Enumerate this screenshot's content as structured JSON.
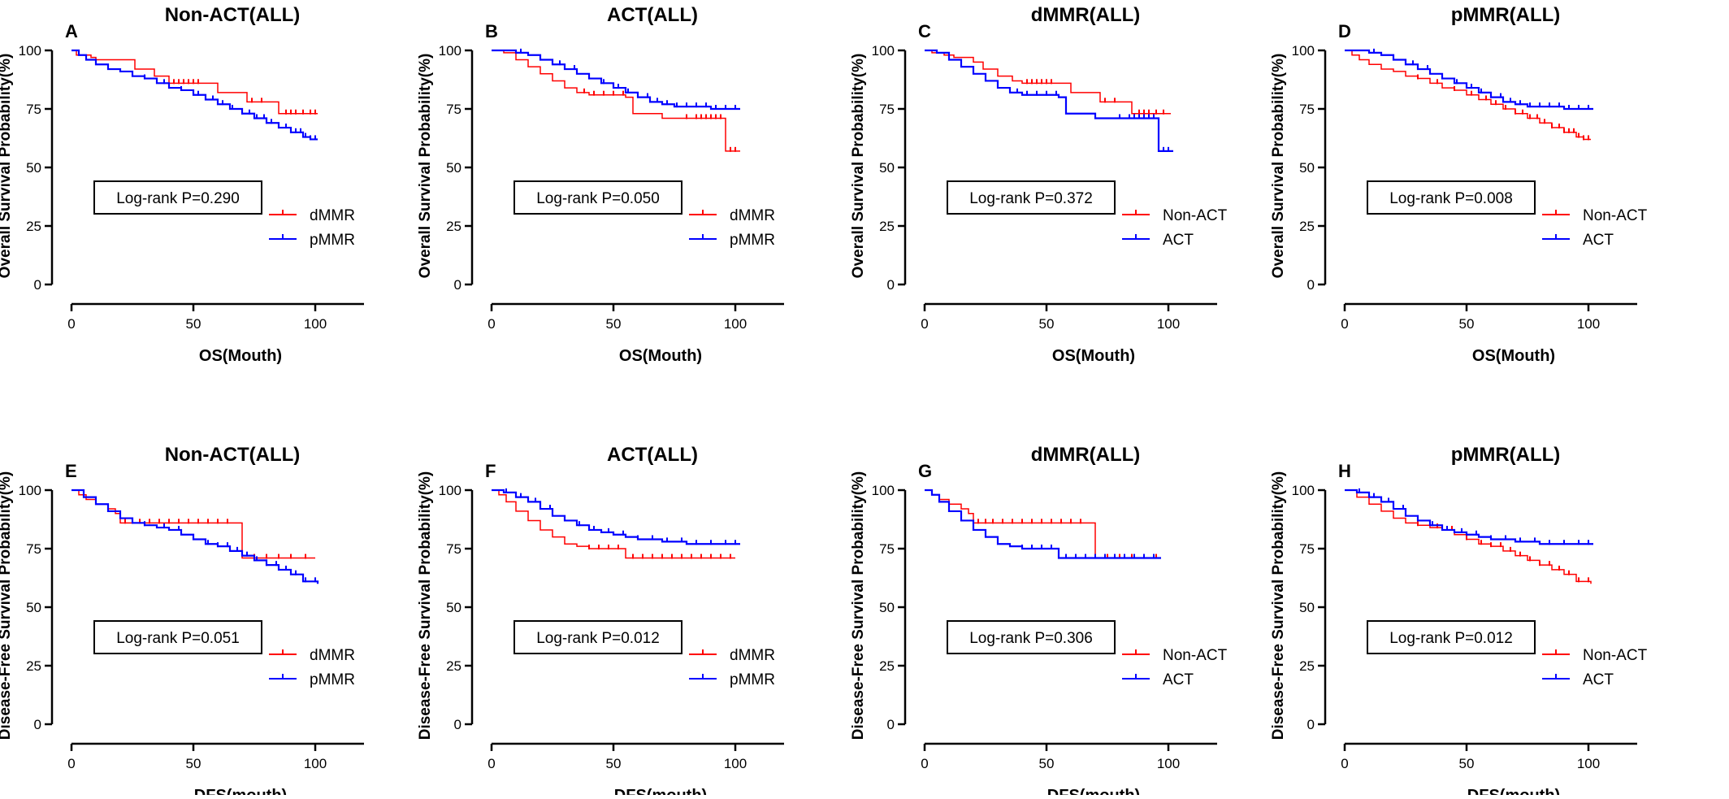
{
  "colors": {
    "red": "#ff0000",
    "blue": "#0000ff",
    "axis": "#000000"
  },
  "chart_data": [
    {
      "panel": "A",
      "type": "line",
      "title": "Non-ACT(ALL)",
      "xlabel": "OS(Mouth)",
      "ylabel": "Overall Survival Probability(%)",
      "xlim": [
        0,
        120
      ],
      "ylim": [
        0,
        100
      ],
      "xticks": [
        0,
        50,
        100
      ],
      "yticks": [
        0,
        25,
        50,
        75,
        100
      ],
      "annotation": "Log-rank P=0.290",
      "legend_placement": "right-middle",
      "series": [
        {
          "name": "dMMR",
          "color": "red",
          "x": [
            0,
            2,
            8,
            10,
            22,
            26,
            34,
            40,
            60,
            72,
            85,
            101
          ],
          "y": [
            100,
            98,
            97,
            96,
            96,
            92,
            89,
            86,
            82,
            78,
            73,
            73
          ],
          "censor": [
            42,
            44,
            46,
            48,
            50,
            52,
            74,
            78,
            88,
            90,
            92,
            95,
            98,
            100
          ]
        },
        {
          "name": "pMMR",
          "color": "blue",
          "x": [
            0,
            3,
            6,
            10,
            15,
            20,
            25,
            30,
            35,
            40,
            45,
            50,
            55,
            60,
            65,
            70,
            75,
            80,
            85,
            90,
            95,
            98,
            101
          ],
          "y": [
            100,
            98,
            96,
            94,
            92,
            91,
            89,
            88,
            86,
            84,
            83,
            81,
            79,
            77,
            75,
            73,
            71,
            69,
            67,
            65,
            63,
            62,
            62
          ],
          "censor": [
            30,
            38,
            45,
            52,
            58,
            62,
            66,
            70,
            73,
            76,
            79,
            82,
            85,
            88,
            90,
            92,
            94,
            96,
            98,
            100
          ]
        }
      ]
    },
    {
      "panel": "B",
      "type": "line",
      "title": "ACT(ALL)",
      "xlabel": "OS(Mouth)",
      "ylabel": "Overall Survival Probability(%)",
      "xlim": [
        0,
        120
      ],
      "ylim": [
        0,
        100
      ],
      "xticks": [
        0,
        50,
        100
      ],
      "yticks": [
        0,
        25,
        50,
        75,
        100
      ],
      "annotation": "Log-rank P=0.050",
      "legend_placement": "right-middle",
      "series": [
        {
          "name": "dMMR",
          "color": "red",
          "x": [
            0,
            5,
            10,
            15,
            20,
            25,
            30,
            35,
            40,
            45,
            55,
            58,
            70,
            95,
            96,
            102
          ],
          "y": [
            100,
            99,
            96,
            93,
            90,
            87,
            84,
            82,
            81,
            81,
            80,
            73,
            71,
            71,
            57,
            57
          ],
          "censor": [
            38,
            42,
            46,
            50,
            54,
            80,
            84,
            86,
            88,
            90,
            92,
            94,
            98,
            100
          ]
        },
        {
          "name": "pMMR",
          "color": "blue",
          "x": [
            0,
            5,
            10,
            15,
            20,
            25,
            30,
            35,
            40,
            45,
            50,
            55,
            60,
            65,
            70,
            75,
            80,
            90,
            102
          ],
          "y": [
            100,
            100,
            99,
            98,
            96,
            94,
            92,
            90,
            88,
            86,
            84,
            82,
            80,
            78,
            77,
            76,
            76,
            75,
            75
          ],
          "censor": [
            12,
            20,
            28,
            34,
            40,
            46,
            52,
            56,
            60,
            64,
            68,
            72,
            76,
            80,
            84,
            88,
            92,
            96,
            100
          ]
        }
      ]
    },
    {
      "panel": "C",
      "type": "line",
      "title": "dMMR(ALL)",
      "xlabel": "OS(Mouth)",
      "ylabel": "Overall Survival Probability(%)",
      "xlim": [
        0,
        120
      ],
      "ylim": [
        0,
        100
      ],
      "xticks": [
        0,
        50,
        100
      ],
      "yticks": [
        0,
        25,
        50,
        75,
        100
      ],
      "annotation": "Log-rank P=0.372",
      "legend_placement": "right-middle",
      "series": [
        {
          "name": "Non-ACT",
          "color": "red",
          "x": [
            0,
            3,
            8,
            12,
            20,
            24,
            30,
            36,
            40,
            60,
            72,
            85,
            101
          ],
          "y": [
            100,
            99,
            98,
            97,
            95,
            92,
            89,
            87,
            86,
            82,
            78,
            73,
            73
          ],
          "censor": [
            42,
            44,
            46,
            48,
            50,
            52,
            74,
            78,
            88,
            90,
            92,
            95,
            98
          ]
        },
        {
          "name": "ACT",
          "color": "blue",
          "x": [
            0,
            5,
            10,
            15,
            20,
            25,
            30,
            35,
            40,
            45,
            55,
            58,
            70,
            95,
            96,
            102
          ],
          "y": [
            100,
            99,
            96,
            93,
            90,
            87,
            84,
            82,
            81,
            81,
            80,
            73,
            71,
            71,
            57,
            57
          ],
          "censor": [
            38,
            42,
            46,
            50,
            54,
            80,
            84,
            86,
            88,
            90,
            92,
            94,
            98,
            100
          ]
        }
      ]
    },
    {
      "panel": "D",
      "type": "line",
      "title": "pMMR(ALL)",
      "xlabel": "OS(Mouth)",
      "ylabel": "Overall Survival Probability(%)",
      "xlim": [
        0,
        120
      ],
      "ylim": [
        0,
        100
      ],
      "xticks": [
        0,
        50,
        100
      ],
      "yticks": [
        0,
        25,
        50,
        75,
        100
      ],
      "annotation": "Log-rank P=0.008",
      "legend_placement": "right-middle",
      "series": [
        {
          "name": "Non-ACT",
          "color": "red",
          "x": [
            0,
            3,
            6,
            10,
            15,
            20,
            25,
            30,
            35,
            40,
            45,
            50,
            55,
            60,
            65,
            70,
            75,
            80,
            85,
            90,
            95,
            98,
            101
          ],
          "y": [
            100,
            98,
            96,
            94,
            92,
            91,
            89,
            88,
            86,
            84,
            83,
            81,
            79,
            77,
            75,
            73,
            71,
            69,
            67,
            65,
            63,
            62,
            62
          ],
          "censor": [
            30,
            38,
            45,
            52,
            58,
            62,
            66,
            70,
            73,
            76,
            79,
            82,
            85,
            88,
            90,
            92,
            94,
            96,
            98,
            100
          ]
        },
        {
          "name": "ACT",
          "color": "blue",
          "x": [
            0,
            5,
            10,
            15,
            20,
            25,
            30,
            35,
            40,
            45,
            50,
            55,
            60,
            65,
            70,
            75,
            80,
            90,
            102
          ],
          "y": [
            100,
            100,
            99,
            98,
            96,
            94,
            92,
            90,
            88,
            86,
            84,
            82,
            80,
            78,
            77,
            76,
            76,
            75,
            75
          ],
          "censor": [
            12,
            20,
            28,
            34,
            40,
            46,
            52,
            56,
            60,
            64,
            68,
            72,
            76,
            80,
            84,
            88,
            92,
            96,
            100
          ]
        }
      ]
    },
    {
      "panel": "E",
      "type": "line",
      "title": "Non-ACT(ALL)",
      "xlabel": "DFS(mouth)",
      "ylabel": "Disease-Free Survival Probability(%)",
      "xlim": [
        0,
        120
      ],
      "ylim": [
        0,
        100
      ],
      "xticks": [
        0,
        50,
        100
      ],
      "yticks": [
        0,
        25,
        50,
        75,
        100
      ],
      "annotation": "Log-rank P=0.051",
      "legend_placement": "right-middle",
      "series": [
        {
          "name": "dMMR",
          "color": "red",
          "x": [
            0,
            3,
            6,
            10,
            15,
            18,
            20,
            68,
            70,
            100
          ],
          "y": [
            100,
            98,
            96,
            94,
            92,
            90,
            86,
            86,
            71,
            71
          ],
          "censor": [
            22,
            25,
            28,
            32,
            36,
            40,
            44,
            48,
            52,
            56,
            60,
            64,
            75,
            80,
            85,
            90,
            96
          ]
        },
        {
          "name": "pMMR",
          "color": "blue",
          "x": [
            0,
            5,
            10,
            15,
            20,
            25,
            30,
            35,
            40,
            45,
            50,
            55,
            60,
            65,
            70,
            75,
            80,
            85,
            90,
            95,
            101
          ],
          "y": [
            100,
            97,
            94,
            91,
            88,
            86,
            85,
            84,
            83,
            81,
            79,
            77,
            76,
            74,
            72,
            70,
            68,
            66,
            64,
            61,
            60
          ],
          "censor": [
            30,
            38,
            44,
            50,
            56,
            60,
            64,
            68,
            72,
            76,
            80,
            84,
            88,
            92,
            96,
            100
          ]
        }
      ]
    },
    {
      "panel": "F",
      "type": "line",
      "title": "ACT(ALL)",
      "xlabel": "DFS(mouth)",
      "ylabel": "Disease-Free Survival Probability(%)",
      "xlim": [
        0,
        120
      ],
      "ylim": [
        0,
        100
      ],
      "xticks": [
        0,
        50,
        100
      ],
      "yticks": [
        0,
        25,
        50,
        75,
        100
      ],
      "annotation": "Log-rank P=0.012",
      "legend_placement": "right-middle",
      "series": [
        {
          "name": "dMMR",
          "color": "red",
          "x": [
            0,
            3,
            6,
            10,
            15,
            20,
            25,
            30,
            35,
            40,
            45,
            55,
            100
          ],
          "y": [
            100,
            98,
            95,
            91,
            87,
            83,
            80,
            77,
            76,
            75,
            75,
            71,
            71
          ],
          "censor": [
            40,
            44,
            48,
            52,
            58,
            62,
            66,
            70,
            74,
            78,
            82,
            86,
            90,
            94,
            98
          ]
        },
        {
          "name": "pMMR",
          "color": "blue",
          "x": [
            0,
            5,
            10,
            15,
            20,
            25,
            30,
            35,
            40,
            45,
            50,
            55,
            60,
            70,
            80,
            102
          ],
          "y": [
            100,
            99,
            97,
            95,
            92,
            89,
            87,
            85,
            83,
            82,
            81,
            80,
            79,
            78,
            77,
            77
          ],
          "censor": [
            6,
            12,
            18,
            24,
            30,
            36,
            42,
            48,
            54,
            60,
            66,
            72,
            78,
            84,
            90,
            96,
            100
          ]
        }
      ]
    },
    {
      "panel": "G",
      "type": "line",
      "title": "dMMR(ALL)",
      "xlabel": "DFS(mouth)",
      "ylabel": "Disease-Free Survival Probability(%)",
      "xlim": [
        0,
        120
      ],
      "ylim": [
        0,
        100
      ],
      "xticks": [
        0,
        50,
        100
      ],
      "yticks": [
        0,
        25,
        50,
        75,
        100
      ],
      "annotation": "Log-rank P=0.306",
      "legend_placement": "right-middle",
      "series": [
        {
          "name": "Non-ACT",
          "color": "red",
          "x": [
            0,
            3,
            6,
            10,
            15,
            18,
            20,
            68,
            70,
            97
          ],
          "y": [
            100,
            98,
            96,
            94,
            92,
            90,
            86,
            86,
            71,
            71
          ],
          "censor": [
            22,
            25,
            28,
            32,
            36,
            40,
            44,
            48,
            52,
            56,
            60,
            64,
            75,
            80,
            85,
            90,
            95
          ]
        },
        {
          "name": "ACT",
          "color": "blue",
          "x": [
            0,
            3,
            6,
            10,
            15,
            20,
            25,
            30,
            35,
            40,
            45,
            55,
            97
          ],
          "y": [
            100,
            98,
            95,
            91,
            87,
            83,
            80,
            77,
            76,
            75,
            75,
            71,
            71
          ],
          "censor": [
            40,
            44,
            48,
            52,
            58,
            62,
            66,
            70,
            74,
            78,
            82,
            86,
            90,
            94
          ]
        }
      ]
    },
    {
      "panel": "H",
      "type": "line",
      "title": "pMMR(ALL)",
      "xlabel": "DFS(mouth)",
      "ylabel": "Disease-Free Survival Probability(%)",
      "xlim": [
        0,
        120
      ],
      "ylim": [
        0,
        100
      ],
      "xticks": [
        0,
        50,
        100
      ],
      "yticks": [
        0,
        25,
        50,
        75,
        100
      ],
      "annotation": "Log-rank P=0.012",
      "legend_placement": "right-middle",
      "series": [
        {
          "name": "Non-ACT",
          "color": "red",
          "x": [
            0,
            5,
            10,
            15,
            20,
            25,
            30,
            35,
            40,
            45,
            50,
            55,
            60,
            65,
            70,
            75,
            80,
            85,
            90,
            95,
            101
          ],
          "y": [
            100,
            97,
            94,
            91,
            88,
            86,
            85,
            84,
            83,
            81,
            79,
            77,
            76,
            74,
            72,
            70,
            68,
            66,
            64,
            61,
            60
          ],
          "censor": [
            30,
            38,
            44,
            50,
            56,
            60,
            64,
            68,
            72,
            76,
            80,
            84,
            88,
            92,
            96,
            100
          ]
        },
        {
          "name": "ACT",
          "color": "blue",
          "x": [
            0,
            5,
            10,
            15,
            20,
            25,
            30,
            35,
            40,
            45,
            50,
            55,
            60,
            70,
            80,
            102
          ],
          "y": [
            100,
            99,
            97,
            95,
            92,
            89,
            87,
            85,
            83,
            82,
            81,
            80,
            79,
            78,
            77,
            77
          ],
          "censor": [
            6,
            12,
            18,
            24,
            30,
            36,
            42,
            48,
            54,
            60,
            66,
            72,
            78,
            84,
            90,
            96,
            100
          ]
        }
      ]
    }
  ]
}
